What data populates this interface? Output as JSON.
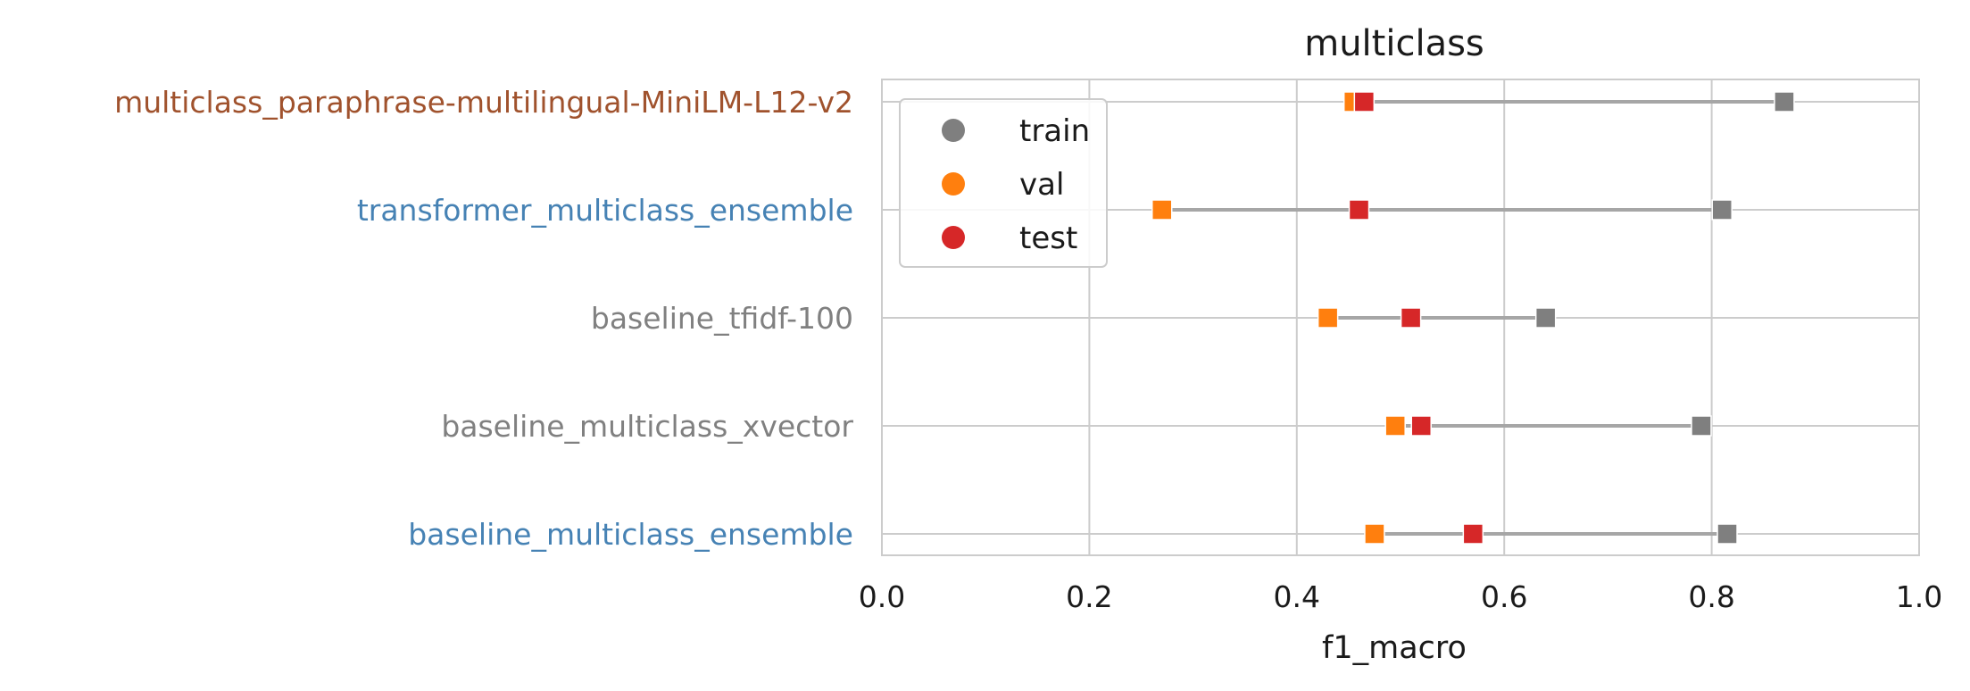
{
  "chart_data": {
    "type": "scatter",
    "title": "multiclass",
    "xlabel": "f1_macro",
    "ylabel": "",
    "xlim": [
      0.0,
      1.0
    ],
    "xticks": [
      "0.0",
      "0.2",
      "0.4",
      "0.6",
      "0.8",
      "1.0"
    ],
    "grid": true,
    "legend_position": "top-left",
    "categories": [
      "multiclass_paraphrase-multilingual-MiniLM-L12-v2",
      "transformer_multiclass_ensemble",
      "baseline_tfidf-100",
      "baseline_multiclass_xvector",
      "baseline_multiclass_ensemble"
    ],
    "category_colors": [
      "#a0522d",
      "#4682b4",
      "#808080",
      "#808080",
      "#4682b4"
    ],
    "series": [
      {
        "name": "train",
        "color": "#7f7f7f",
        "values": [
          0.87,
          0.81,
          0.64,
          0.79,
          0.815
        ]
      },
      {
        "name": "val",
        "color": "#ff7f0e",
        "values": [
          0.455,
          0.27,
          0.43,
          0.495,
          0.475
        ]
      },
      {
        "name": "test",
        "color": "#d62728",
        "values": [
          0.465,
          0.46,
          0.51,
          0.52,
          0.57
        ]
      }
    ]
  }
}
